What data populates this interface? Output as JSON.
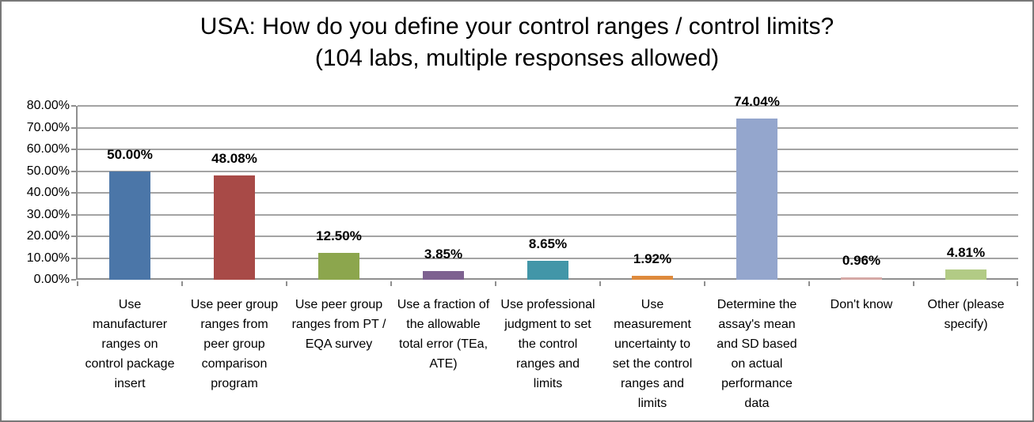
{
  "chart_data": {
    "type": "bar",
    "title": "USA: How do you define your control ranges / control limits?",
    "subtitle": "(104 labs, multiple responses allowed)",
    "categories": [
      "Use manufacturer ranges on control package insert",
      "Use peer group ranges from peer group comparison program",
      "Use peer group ranges from PT / EQA survey",
      "Use a fraction of the allowable total error (TEa, ATE)",
      "Use professional judgment to set the control ranges and limits",
      "Use measurement uncertainty to set the control ranges and limits",
      "Determine the assay's mean and SD based on actual performance data",
      "Don't know",
      "Other (please specify)"
    ],
    "values": [
      50.0,
      48.08,
      12.5,
      3.85,
      8.65,
      1.92,
      74.04,
      0.96,
      4.81
    ],
    "value_labels": [
      "50.00%",
      "48.08%",
      "12.50%",
      "3.85%",
      "8.65%",
      "1.92%",
      "74.04%",
      "0.96%",
      "4.81%"
    ],
    "bar_colors": [
      "#4b76a8",
      "#a84a47",
      "#8ca64d",
      "#7e6290",
      "#4296a8",
      "#de8a3c",
      "#94a6cd",
      "#d5a8a5",
      "#b2cb85"
    ],
    "ylim": [
      0,
      80
    ],
    "yticks": [
      {
        "value": 0,
        "label": "0.00%"
      },
      {
        "value": 10,
        "label": "10.00%"
      },
      {
        "value": 20,
        "label": "20.00%"
      },
      {
        "value": 30,
        "label": "30.00%"
      },
      {
        "value": 40,
        "label": "40.00%"
      },
      {
        "value": 50,
        "label": "50.00%"
      },
      {
        "value": 60,
        "label": "60.00%"
      },
      {
        "value": 70,
        "label": "70.00%"
      },
      {
        "value": 80,
        "label": "80.00%"
      }
    ],
    "grid": true,
    "legend": "none"
  },
  "colors": {
    "grid": "#a3a3a3",
    "axis": "#8f8f8f",
    "frame_border": "#787878",
    "text": "#000000",
    "background": "#ffffff"
  }
}
